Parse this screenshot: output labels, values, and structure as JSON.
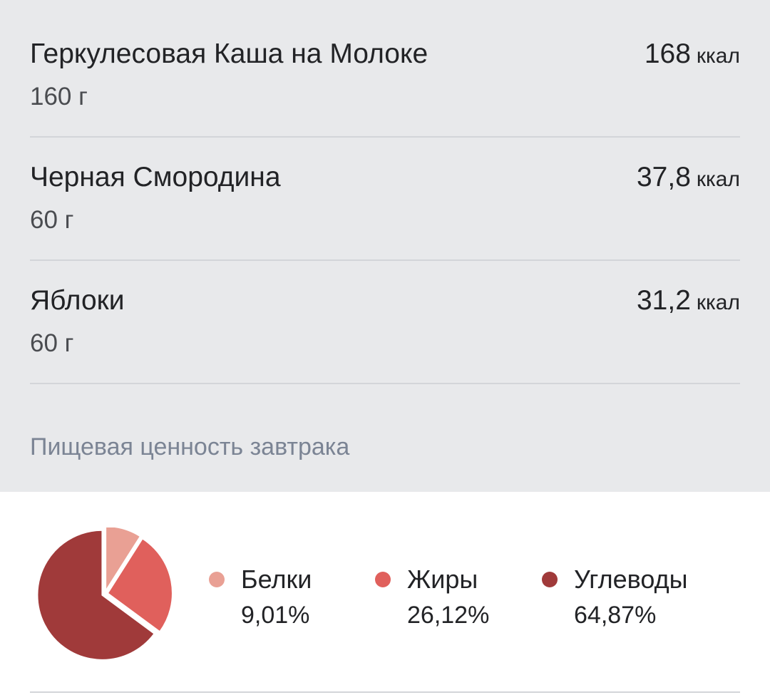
{
  "foods": [
    {
      "name": "Геркулесовая Каша на Молоке",
      "weight": "160 г",
      "kcal": "168",
      "unit": "ккал"
    },
    {
      "name": "Черная Смородина",
      "weight": "60 г",
      "kcal": "37,8",
      "unit": "ккал"
    },
    {
      "name": "Яблоки",
      "weight": "60 г",
      "kcal": "31,2",
      "unit": "ккал"
    }
  ],
  "nutrition": {
    "title": "Пищевая ценность завтрака"
  },
  "chart_data": {
    "type": "pie",
    "slices": [
      {
        "name": "Белки",
        "value": 9.01,
        "label": "9,01%",
        "color": "#e9a094"
      },
      {
        "name": "Жиры",
        "value": 26.12,
        "label": "26,12%",
        "color": "#e0605c"
      },
      {
        "name": "Углеводы",
        "value": 64.87,
        "label": "64,87%",
        "color": "#a03a3a"
      }
    ]
  }
}
